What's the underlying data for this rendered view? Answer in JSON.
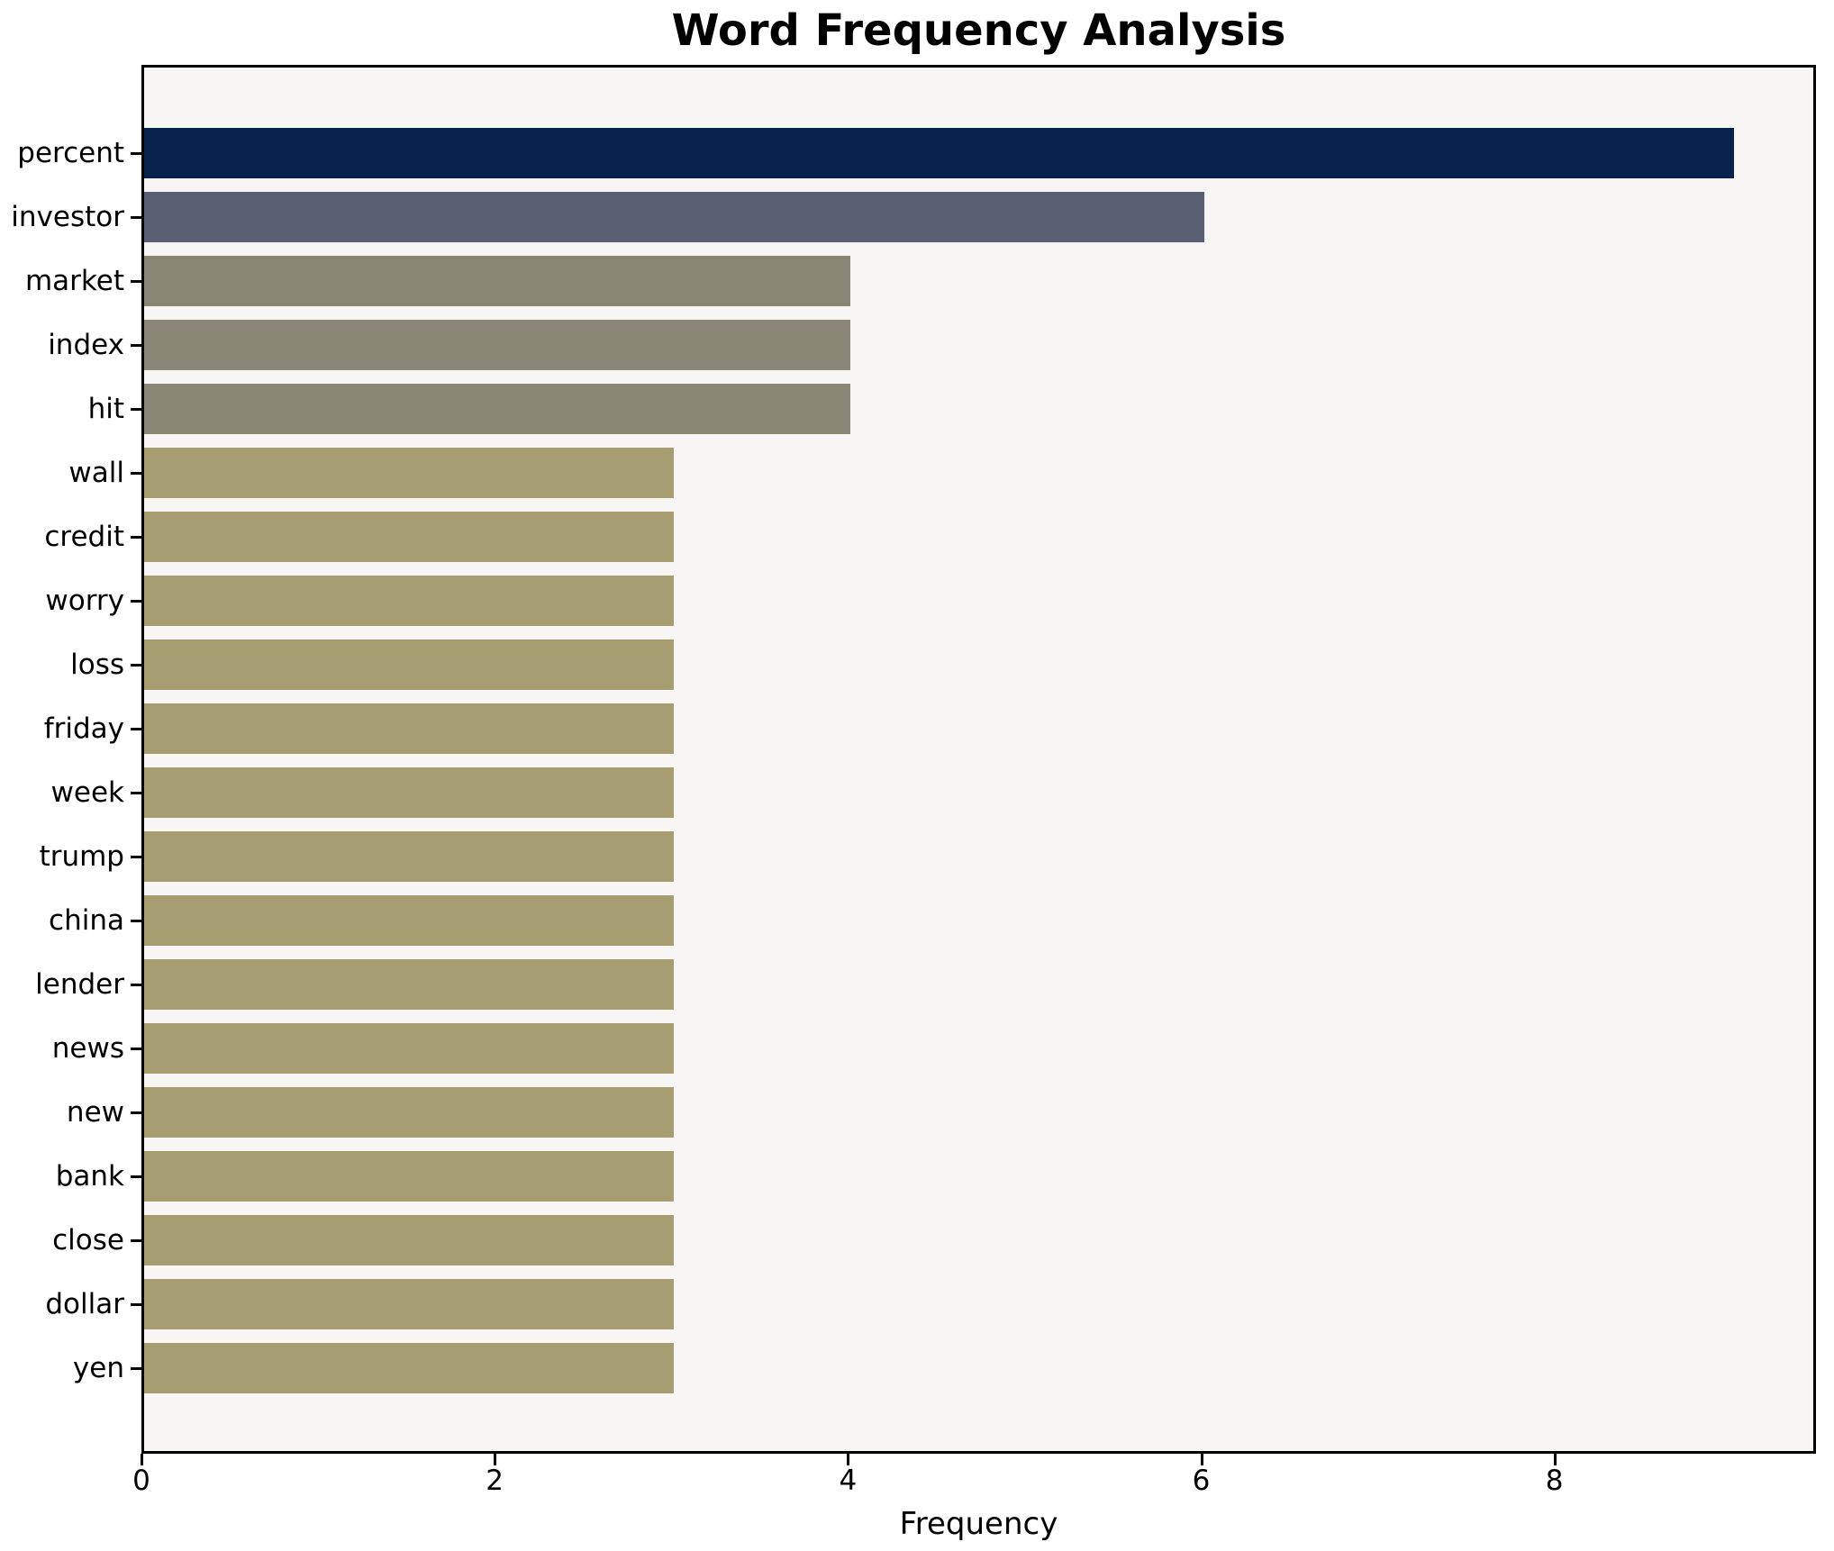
{
  "chart_data": {
    "type": "bar",
    "orientation": "horizontal",
    "title": "Word Frequency Analysis",
    "xlabel": "Frequency",
    "ylabel": "",
    "categories": [
      "percent",
      "investor",
      "market",
      "index",
      "hit",
      "wall",
      "credit",
      "worry",
      "loss",
      "friday",
      "week",
      "trump",
      "china",
      "lender",
      "news",
      "new",
      "bank",
      "close",
      "dollar",
      "yen"
    ],
    "values": [
      9,
      6,
      4,
      4,
      4,
      3,
      3,
      3,
      3,
      3,
      3,
      3,
      3,
      3,
      3,
      3,
      3,
      3,
      3,
      3
    ],
    "bar_colors": [
      "#07234b",
      "#5a6073",
      "#8a8675",
      "#8a8675",
      "#8a8675",
      "#a69e71",
      "#a69e71",
      "#a69e71",
      "#a69e71",
      "#a69e71",
      "#a69e71",
      "#a69e71",
      "#a69e71",
      "#a69e71",
      "#a69e71",
      "#a69e71",
      "#a69e71",
      "#a69e71",
      "#a69e71",
      "#a69e71"
    ],
    "x_ticks": [
      0,
      2,
      4,
      6,
      8
    ],
    "xlim": [
      0,
      9.45
    ],
    "grid": false,
    "legend": null,
    "colors": {
      "figure_background": "#ffffff",
      "plot_background": "#f7f6f4",
      "spine": "#000000",
      "text": "#000000",
      "bar_high": "#07234b",
      "bar_mid": "#5a6073",
      "bar_low_mid": "#8a8675",
      "bar_low": "#a69e71"
    }
  }
}
